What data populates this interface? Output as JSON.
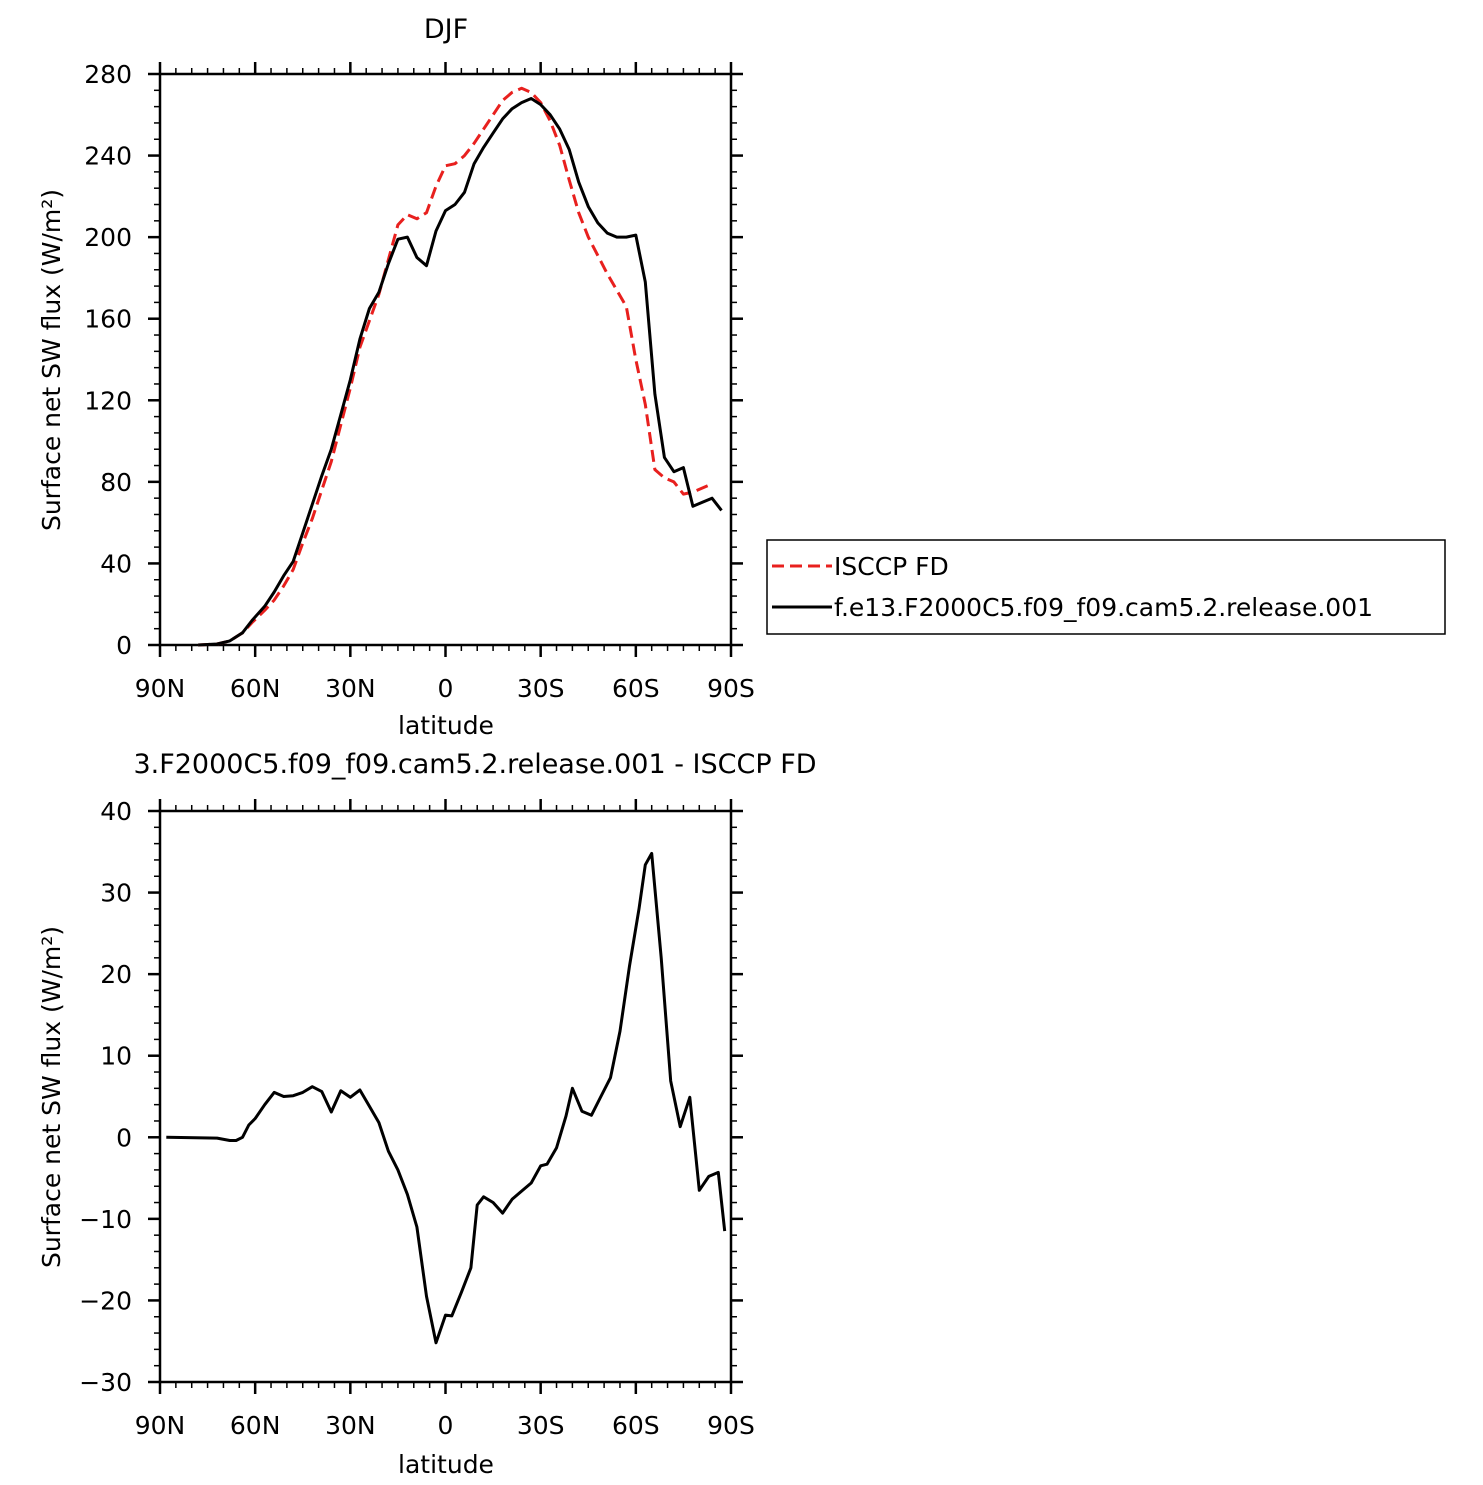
{
  "chart_data": [
    {
      "type": "line",
      "title": "DJF",
      "xlabel": "latitude",
      "ylabel": "Surface net SW flux (W/m²)",
      "xlim": [
        -90,
        90
      ],
      "ylim": [
        0,
        280
      ],
      "xticks": [
        {
          "value": -90,
          "label": "90N"
        },
        {
          "value": -60,
          "label": "60N"
        },
        {
          "value": -30,
          "label": "30N"
        },
        {
          "value": 0,
          "label": "0"
        },
        {
          "value": 30,
          "label": "30S"
        },
        {
          "value": 60,
          "label": "60S"
        },
        {
          "value": 90,
          "label": "90S"
        }
      ],
      "yticks": [
        0,
        40,
        80,
        120,
        160,
        200,
        240,
        280
      ],
      "legend_position": "right",
      "series": [
        {
          "name": "ISCCP FD",
          "color": "#e8201e",
          "dash": true,
          "points": [
            [
              -78,
              0
            ],
            [
              -72,
              0.5
            ],
            [
              -68,
              2
            ],
            [
              -64,
              6
            ],
            [
              -61,
              11
            ],
            [
              -57,
              17
            ],
            [
              -54,
              22
            ],
            [
              -51,
              29
            ],
            [
              -48,
              37
            ],
            [
              -45,
              50
            ],
            [
              -42,
              62
            ],
            [
              -39,
              76
            ],
            [
              -36,
              90
            ],
            [
              -33,
              108
            ],
            [
              -30,
              126
            ],
            [
              -27,
              146
            ],
            [
              -24,
              159
            ],
            [
              -21,
              172
            ],
            [
              -18,
              189
            ],
            [
              -15,
              206
            ],
            [
              -12,
              211
            ],
            [
              -9,
              209
            ],
            [
              -6,
              212
            ],
            [
              -3,
              225
            ],
            [
              0,
              235
            ],
            [
              3,
              236
            ],
            [
              6,
              240
            ],
            [
              9,
              246
            ],
            [
              12,
              253
            ],
            [
              15,
              260
            ],
            [
              18,
              267
            ],
            [
              21,
              271
            ],
            [
              24,
              273
            ],
            [
              27,
              271
            ],
            [
              30,
              266
            ],
            [
              33,
              257
            ],
            [
              36,
              245
            ],
            [
              39,
              228
            ],
            [
              42,
              212
            ],
            [
              45,
              200
            ],
            [
              48,
              191
            ],
            [
              51,
              182
            ],
            [
              54,
              174
            ],
            [
              57,
              166
            ],
            [
              60,
              140
            ],
            [
              63,
              118
            ],
            [
              66,
              86
            ],
            [
              69,
              82
            ],
            [
              72,
              80
            ],
            [
              75,
              74
            ],
            [
              78,
              75
            ],
            [
              81,
              77
            ],
            [
              84,
              79
            ]
          ]
        },
        {
          "name": "f.e13.F2000C5.f09_f09.cam5.2.release.001",
          "color": "#000000",
          "dash": false,
          "points": [
            [
              -78,
              0
            ],
            [
              -72,
              0.5
            ],
            [
              -68,
              2
            ],
            [
              -64,
              6
            ],
            [
              -61,
              12
            ],
            [
              -57,
              19
            ],
            [
              -54,
              26
            ],
            [
              -51,
              34
            ],
            [
              -48,
              41
            ],
            [
              -45,
              55
            ],
            [
              -42,
              69
            ],
            [
              -39,
              83
            ],
            [
              -36,
              96
            ],
            [
              -33,
              113
            ],
            [
              -30,
              130
            ],
            [
              -27,
              150
            ],
            [
              -24,
              165
            ],
            [
              -21,
              173
            ],
            [
              -18,
              187
            ],
            [
              -15,
              199
            ],
            [
              -12,
              200
            ],
            [
              -9,
              190
            ],
            [
              -6,
              186
            ],
            [
              -3,
              203
            ],
            [
              0,
              213
            ],
            [
              3,
              216
            ],
            [
              6,
              222
            ],
            [
              9,
              236
            ],
            [
              12,
              244
            ],
            [
              15,
              251
            ],
            [
              18,
              258
            ],
            [
              21,
              263
            ],
            [
              24,
              266
            ],
            [
              27,
              268
            ],
            [
              30,
              265
            ],
            [
              33,
              260
            ],
            [
              36,
              253
            ],
            [
              39,
              243
            ],
            [
              42,
              227
            ],
            [
              45,
              215
            ],
            [
              48,
              207
            ],
            [
              51,
              202
            ],
            [
              54,
              200
            ],
            [
              57,
              200
            ],
            [
              60,
              201
            ],
            [
              63,
              178
            ],
            [
              66,
              123
            ],
            [
              69,
              92
            ],
            [
              72,
              85
            ],
            [
              75,
              87
            ],
            [
              78,
              68
            ],
            [
              81,
              70
            ],
            [
              84,
              72
            ],
            [
              87,
              66
            ]
          ]
        }
      ]
    },
    {
      "type": "line",
      "title": "3.F2000C5.f09_f09.cam5.2.release.001  -  ISCCP FD",
      "xlabel": "latitude",
      "ylabel": "Surface net SW flux (W/m²)",
      "xlim": [
        -90,
        90
      ],
      "ylim": [
        -30,
        40
      ],
      "xticks": [
        {
          "value": -90,
          "label": "90N"
        },
        {
          "value": -60,
          "label": "60N"
        },
        {
          "value": -30,
          "label": "30N"
        },
        {
          "value": 0,
          "label": "0"
        },
        {
          "value": 30,
          "label": "30S"
        },
        {
          "value": 60,
          "label": "60S"
        },
        {
          "value": 90,
          "label": "90S"
        }
      ],
      "yticks": [
        -30,
        -20,
        -10,
        0,
        10,
        20,
        30,
        40
      ],
      "series": [
        {
          "color": "#000000",
          "dash": false,
          "points": [
            [
              -88,
              0
            ],
            [
              -72,
              -0.1
            ],
            [
              -68,
              -0.4
            ],
            [
              -66,
              -0.4
            ],
            [
              -64,
              0
            ],
            [
              -62,
              1.5
            ],
            [
              -60,
              2.3
            ],
            [
              -57,
              4
            ],
            [
              -54,
              5.5
            ],
            [
              -51,
              5
            ],
            [
              -48,
              5.1
            ],
            [
              -45,
              5.5
            ],
            [
              -42,
              6.2
            ],
            [
              -39,
              5.6
            ],
            [
              -36,
              3.1
            ],
            [
              -33,
              5.7
            ],
            [
              -30,
              4.9
            ],
            [
              -27,
              5.8
            ],
            [
              -24,
              3.8
            ],
            [
              -21,
              1.8
            ],
            [
              -18,
              -1.7
            ],
            [
              -15,
              -4
            ],
            [
              -12,
              -7
            ],
            [
              -9,
              -11
            ],
            [
              -6,
              -19.5
            ],
            [
              -3,
              -25.2
            ],
            [
              0,
              -21.8
            ],
            [
              2,
              -21.9
            ],
            [
              5,
              -19
            ],
            [
              8,
              -16
            ],
            [
              10,
              -8.3
            ],
            [
              12,
              -7.3
            ],
            [
              15,
              -8
            ],
            [
              18,
              -9.3
            ],
            [
              21,
              -7.6
            ],
            [
              24,
              -6.6
            ],
            [
              27,
              -5.6
            ],
            [
              30,
              -3.5
            ],
            [
              32,
              -3.3
            ],
            [
              35,
              -1.3
            ],
            [
              38,
              2.6
            ],
            [
              40,
              6
            ],
            [
              43,
              3.2
            ],
            [
              46,
              2.7
            ],
            [
              49,
              5
            ],
            [
              52,
              7.3
            ],
            [
              55,
              13
            ],
            [
              58,
              21
            ],
            [
              61,
              28
            ],
            [
              63,
              33.4
            ],
            [
              65,
              34.8
            ],
            [
              68,
              22
            ],
            [
              71,
              6.9
            ],
            [
              74,
              1.3
            ],
            [
              77,
              4.9
            ],
            [
              80,
              -6.5
            ],
            [
              83,
              -4.8
            ],
            [
              86,
              -4.3
            ],
            [
              88,
              -11.5
            ]
          ]
        }
      ]
    }
  ],
  "legend": {
    "entries": [
      {
        "label": "ISCCP FD"
      },
      {
        "label": "f.e13.F2000C5.f09_f09.cam5.2.release.001"
      }
    ]
  }
}
